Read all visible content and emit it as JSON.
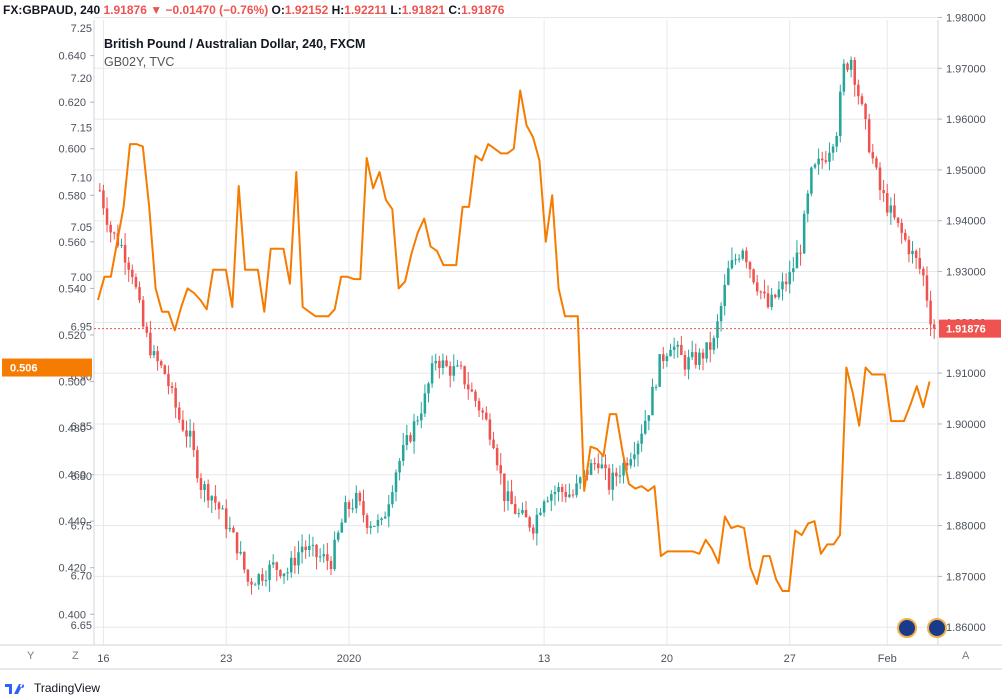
{
  "header": {
    "symbol": "FX:GBPAUD, 240",
    "last": "1.91876",
    "change": "−0.01470 (−0.76%)",
    "o_label": "O:",
    "o_value": "1.92152",
    "h_label": "H:",
    "h_value": "1.92211",
    "l_label": "L:",
    "l_value": "1.91821",
    "c_label": "C:",
    "c_value": "1.91876"
  },
  "legend": {
    "title": "British Pound / Australian Dollar, 240, FXCM",
    "overlay": "GB02Y, TVC"
  },
  "footer": {
    "brand": "TradingView"
  },
  "axis_buttons": {
    "y": "Y",
    "z": "Z",
    "a": "A"
  },
  "colors": {
    "up": "#26a69a",
    "down": "#ef5350",
    "overlay_line": "#f57c00",
    "grid": "#e6e8ec",
    "axis_text": "#4c525e",
    "price_tag": "#ef5350",
    "overlay_tag": "#f57c00"
  },
  "chart_data": [
    {
      "type": "candlestick",
      "series_name": "British Pound / Australian Dollar, 240, FXCM",
      "axis": "right",
      "ylim": [
        1.8565,
        1.9795
      ],
      "yticks": [
        1.86,
        1.87,
        1.88,
        1.89,
        1.9,
        1.91,
        1.92,
        1.93,
        1.94,
        1.95,
        1.96,
        1.97,
        1.98
      ],
      "ytick_labels": [
        "1.86000",
        "1.87000",
        "1.88000",
        "1.89000",
        "1.90000",
        "1.91000",
        "1.92000",
        "1.93000",
        "1.94000",
        "1.95000",
        "1.96000",
        "1.97000",
        "1.98000"
      ],
      "last_price": 1.91876,
      "last_price_label": "1.91876",
      "anchors": [
        [
          0,
          1.946
        ],
        [
          3,
          1.938
        ],
        [
          6,
          1.935
        ],
        [
          9,
          1.93
        ],
        [
          12,
          1.919
        ],
        [
          15,
          1.913
        ],
        [
          18,
          1.91
        ],
        [
          22,
          1.901
        ],
        [
          25,
          1.897
        ],
        [
          28,
          1.888
        ],
        [
          31,
          1.886
        ],
        [
          34,
          1.882
        ],
        [
          38,
          1.876
        ],
        [
          41,
          1.869
        ],
        [
          44,
          1.87
        ],
        [
          48,
          1.872
        ],
        [
          52,
          1.871
        ],
        [
          56,
          1.876
        ],
        [
          60,
          1.874
        ],
        [
          64,
          1.873
        ],
        [
          68,
          1.883
        ],
        [
          71,
          1.885
        ],
        [
          74,
          1.881
        ],
        [
          78,
          1.88
        ],
        [
          82,
          1.891
        ],
        [
          86,
          1.898
        ],
        [
          90,
          1.905
        ],
        [
          93,
          1.913
        ],
        [
          96,
          1.911
        ],
        [
          100,
          1.91
        ],
        [
          103,
          1.906
        ],
        [
          106,
          1.902
        ],
        [
          109,
          1.897
        ],
        [
          112,
          1.886
        ],
        [
          116,
          1.882
        ],
        [
          120,
          1.88
        ],
        [
          123,
          1.886
        ],
        [
          127,
          1.887
        ],
        [
          131,
          1.886
        ],
        [
          134,
          1.89
        ],
        [
          138,
          1.893
        ],
        [
          141,
          1.888
        ],
        [
          145,
          1.892
        ],
        [
          149,
          1.897
        ],
        [
          152,
          1.903
        ],
        [
          155,
          1.912
        ],
        [
          158,
          1.916
        ],
        [
          162,
          1.912
        ],
        [
          166,
          1.913
        ],
        [
          170,
          1.916
        ],
        [
          174,
          1.93
        ],
        [
          178,
          1.935
        ],
        [
          181,
          1.929
        ],
        [
          185,
          1.923
        ],
        [
          188,
          1.926
        ],
        [
          191,
          1.929
        ],
        [
          194,
          1.935
        ],
        [
          197,
          1.949
        ],
        [
          201,
          1.953
        ],
        [
          204,
          1.958
        ],
        [
          206,
          1.97
        ],
        [
          208,
          1.972
        ],
        [
          210,
          1.965
        ],
        [
          213,
          1.955
        ],
        [
          216,
          1.946
        ],
        [
          220,
          1.94
        ],
        [
          223,
          1.936
        ],
        [
          226,
          1.932
        ],
        [
          228,
          1.929
        ],
        [
          230,
          1.921
        ],
        [
          231,
          1.91876
        ]
      ],
      "n_candles": 232,
      "x_tick_labels": [
        {
          "label": "16",
          "index": 1
        },
        {
          "label": "23",
          "index": 35
        },
        {
          "label": "2020",
          "index": 69
        },
        {
          "label": "13",
          "index": 123
        },
        {
          "label": "20",
          "index": 157
        },
        {
          "label": "27",
          "index": 191
        },
        {
          "label": "Feb",
          "index": 218
        }
      ]
    },
    {
      "type": "line",
      "series_name": "GB02Y, TVC",
      "axis": "left",
      "ylim": [
        0.3868,
        0.6553
      ],
      "yticks": [
        0.4,
        0.42,
        0.44,
        0.46,
        0.48,
        0.5,
        0.52,
        0.54,
        0.56,
        0.58,
        0.6,
        0.62,
        0.64
      ],
      "ytick_labels": [
        "0.400",
        "0.420",
        "0.440",
        "0.460",
        "0.480",
        "0.500",
        "0.520",
        "0.540",
        "0.560",
        "0.580",
        "0.600",
        "0.620",
        "0.640"
      ],
      "last_value": 0.506,
      "last_value_label": "0.506",
      "points": [
        [
          0,
          0.535
        ],
        [
          1,
          0.545
        ],
        [
          2,
          0.545
        ],
        [
          3,
          0.56
        ],
        [
          4,
          0.575
        ],
        [
          5,
          0.602
        ],
        [
          6,
          0.602
        ],
        [
          7,
          0.601
        ],
        [
          8,
          0.575
        ],
        [
          9,
          0.54
        ],
        [
          10,
          0.53
        ],
        [
          11,
          0.53
        ],
        [
          12,
          0.522
        ],
        [
          13,
          0.532
        ],
        [
          14,
          0.54
        ],
        [
          15,
          0.538
        ],
        [
          16,
          0.535
        ],
        [
          17,
          0.531
        ],
        [
          18,
          0.548
        ],
        [
          19,
          0.548
        ],
        [
          20,
          0.548
        ],
        [
          21,
          0.532
        ],
        [
          22,
          0.584
        ],
        [
          23,
          0.548
        ],
        [
          24,
          0.548
        ],
        [
          25,
          0.548
        ],
        [
          26,
          0.53
        ],
        [
          27,
          0.557
        ],
        [
          28,
          0.557
        ],
        [
          29,
          0.557
        ],
        [
          30,
          0.542
        ],
        [
          31,
          0.59
        ],
        [
          32,
          0.532
        ],
        [
          33,
          0.53
        ],
        [
          34,
          0.528
        ],
        [
          35,
          0.528
        ],
        [
          36,
          0.528
        ],
        [
          37,
          0.531
        ],
        [
          38,
          0.545
        ],
        [
          39,
          0.545
        ],
        [
          40,
          0.544
        ],
        [
          41,
          0.544
        ],
        [
          42,
          0.596
        ],
        [
          43,
          0.583
        ],
        [
          44,
          0.59
        ],
        [
          45,
          0.578
        ],
        [
          46,
          0.574
        ],
        [
          47,
          0.54
        ],
        [
          48,
          0.543
        ],
        [
          49,
          0.555
        ],
        [
          50,
          0.564
        ],
        [
          51,
          0.57
        ],
        [
          52,
          0.558
        ],
        [
          53,
          0.556
        ],
        [
          54,
          0.55
        ],
        [
          55,
          0.55
        ],
        [
          56,
          0.55
        ],
        [
          57,
          0.575
        ],
        [
          58,
          0.575
        ],
        [
          59,
          0.597
        ],
        [
          60,
          0.595
        ],
        [
          61,
          0.602
        ],
        [
          62,
          0.6
        ],
        [
          63,
          0.598
        ],
        [
          64,
          0.598
        ],
        [
          65,
          0.6
        ],
        [
          66,
          0.625
        ],
        [
          67,
          0.61
        ],
        [
          68,
          0.605
        ],
        [
          69,
          0.595
        ],
        [
          70,
          0.56
        ],
        [
          71,
          0.58
        ],
        [
          72,
          0.54
        ],
        [
          73,
          0.528
        ],
        [
          74,
          0.528
        ],
        [
          75,
          0.528
        ],
        [
          76,
          0.453
        ],
        [
          77,
          0.472
        ],
        [
          78,
          0.471
        ],
        [
          79,
          0.468
        ],
        [
          80,
          0.486
        ],
        [
          81,
          0.486
        ],
        [
          82,
          0.47
        ],
        [
          83,
          0.456
        ],
        [
          84,
          0.454
        ],
        [
          85,
          0.455
        ],
        [
          86,
          0.453
        ],
        [
          87,
          0.455
        ],
        [
          88,
          0.425
        ],
        [
          89,
          0.427
        ],
        [
          90,
          0.427
        ],
        [
          91,
          0.427
        ],
        [
          92,
          0.427
        ],
        [
          93,
          0.427
        ],
        [
          94,
          0.426
        ],
        [
          95,
          0.432
        ],
        [
          96,
          0.428
        ],
        [
          97,
          0.422
        ],
        [
          98,
          0.442
        ],
        [
          99,
          0.437
        ],
        [
          100,
          0.438
        ],
        [
          101,
          0.437
        ],
        [
          102,
          0.42
        ],
        [
          103,
          0.413
        ],
        [
          104,
          0.425
        ],
        [
          105,
          0.425
        ],
        [
          106,
          0.415
        ],
        [
          107,
          0.41
        ],
        [
          108,
          0.41
        ],
        [
          109,
          0.436
        ],
        [
          110,
          0.434
        ],
        [
          111,
          0.439
        ],
        [
          112,
          0.44
        ],
        [
          113,
          0.426
        ],
        [
          114,
          0.43
        ],
        [
          115,
          0.43
        ],
        [
          116,
          0.434
        ],
        [
          117,
          0.506
        ],
        [
          118,
          0.495
        ],
        [
          119,
          0.481
        ],
        [
          120,
          0.506
        ],
        [
          121,
          0.503
        ],
        [
          122,
          0.503
        ],
        [
          123,
          0.503
        ],
        [
          124,
          0.483
        ],
        [
          125,
          0.483
        ],
        [
          126,
          0.483
        ],
        [
          127,
          0.49
        ],
        [
          128,
          0.498
        ],
        [
          129,
          0.489
        ],
        [
          130,
          0.5
        ]
      ],
      "point_x_scale": 1.7825
    }
  ]
}
